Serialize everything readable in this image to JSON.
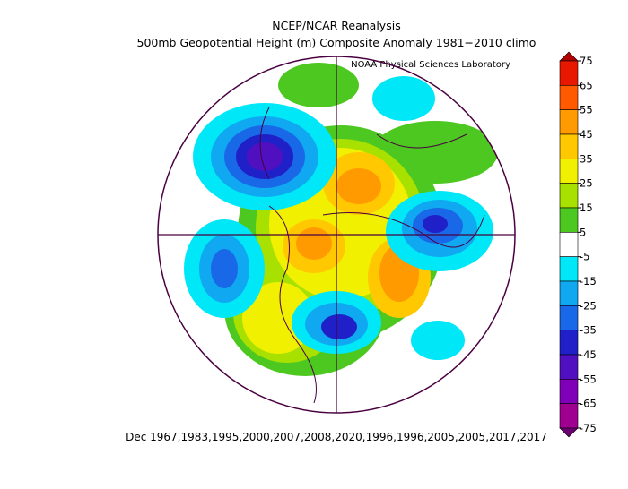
{
  "title": "NCEP/NCAR Reanalysis",
  "subtitle": "500mb Geopotential Height (m) Composite Anomaly 1981−2010 climo",
  "credit": "NOAA Physical Sciences Laboratory",
  "footer": "Dec 1967,1983,1995,2000,2007,2008,2020,1996,1996,2005,2005,2017,2017",
  "colorbar": {
    "ticks": [
      75,
      65,
      55,
      45,
      35,
      25,
      15,
      5,
      -5,
      -15,
      -25,
      -35,
      -45,
      -55,
      -65,
      -75
    ],
    "colors": [
      "#b00000",
      "#e81800",
      "#ff5a00",
      "#ff9a00",
      "#ffc800",
      "#f0f000",
      "#a8e000",
      "#4cc820",
      "#ffffff",
      "#00e8f8",
      "#10a8f0",
      "#1868e8",
      "#2020c8",
      "#5010c0",
      "#8000b8",
      "#a00090",
      "#6a0070"
    ]
  }
}
